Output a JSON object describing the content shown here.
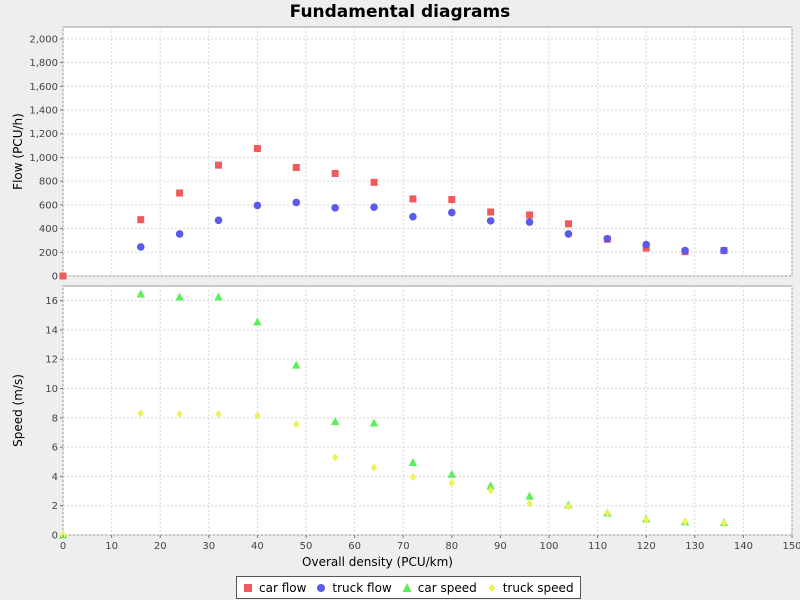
{
  "chart_data": {
    "title": "Fundamental diagrams",
    "xlabel": "Overall density (PCU/km)",
    "xlim": [
      0,
      150
    ],
    "xticks": [
      0,
      10,
      20,
      30,
      40,
      50,
      60,
      70,
      80,
      90,
      100,
      110,
      120,
      130,
      140,
      150
    ],
    "grid": true,
    "legend_position": "bottom",
    "plots": [
      {
        "type": "scatter",
        "ylabel": "Flow (PCU/h)",
        "ylim": [
          0,
          2100
        ],
        "yticks": [
          0,
          200,
          400,
          600,
          800,
          1000,
          1200,
          1400,
          1600,
          1800,
          2000
        ],
        "ytick_labels": [
          "0",
          "200",
          "400",
          "600",
          "800",
          "1,000",
          "1,200",
          "1,400",
          "1,600",
          "1,800",
          "2,000"
        ],
        "series": [
          {
            "name": "car flow",
            "marker": "square",
            "color": "#f05a5a",
            "points": [
              [
                0,
                0
              ],
              [
                16,
                475
              ],
              [
                24,
                700
              ],
              [
                32,
                935
              ],
              [
                40,
                1075
              ],
              [
                48,
                915
              ],
              [
                56,
                865
              ],
              [
                64,
                790
              ],
              [
                72,
                650
              ],
              [
                80,
                645
              ],
              [
                88,
                540
              ],
              [
                96,
                515
              ],
              [
                104,
                440
              ],
              [
                112,
                310
              ],
              [
                120,
                235
              ],
              [
                128,
                205
              ],
              [
                136,
                215
              ]
            ]
          },
          {
            "name": "truck flow",
            "marker": "circle",
            "color": "#5a5af0",
            "points": [
              [
                16,
                245
              ],
              [
                24,
                355
              ],
              [
                32,
                470
              ],
              [
                40,
                595
              ],
              [
                48,
                620
              ],
              [
                56,
                575
              ],
              [
                64,
                580
              ],
              [
                72,
                500
              ],
              [
                80,
                535
              ],
              [
                88,
                465
              ],
              [
                96,
                455
              ],
              [
                104,
                355
              ],
              [
                112,
                315
              ],
              [
                120,
                265
              ],
              [
                128,
                215
              ],
              [
                136,
                215
              ]
            ]
          }
        ]
      },
      {
        "type": "scatter",
        "ylabel": "Speed (m/s)",
        "ylim": [
          0,
          17
        ],
        "yticks": [
          0,
          2,
          4,
          6,
          8,
          10,
          12,
          14,
          16
        ],
        "ytick_labels": [
          "0",
          "2",
          "4",
          "6",
          "8",
          "10",
          "12",
          "14",
          "16"
        ],
        "series": [
          {
            "name": "car speed",
            "marker": "triangle",
            "color": "#5af05a",
            "points": [
              [
                0,
                0
              ],
              [
                16,
                16.45
              ],
              [
                24,
                16.25
              ],
              [
                32,
                16.25
              ],
              [
                40,
                14.55
              ],
              [
                48,
                11.6
              ],
              [
                56,
                7.75
              ],
              [
                64,
                7.65
              ],
              [
                72,
                4.95
              ],
              [
                80,
                4.15
              ],
              [
                88,
                3.35
              ],
              [
                96,
                2.65
              ],
              [
                104,
                2.05
              ],
              [
                112,
                1.5
              ],
              [
                120,
                1.1
              ],
              [
                128,
                0.9
              ],
              [
                136,
                0.85
              ]
            ]
          },
          {
            "name": "truck speed",
            "marker": "diamond",
            "color": "#f0f05a",
            "points": [
              [
                0,
                0
              ],
              [
                16,
                8.3
              ],
              [
                24,
                8.25
              ],
              [
                32,
                8.25
              ],
              [
                40,
                8.15
              ],
              [
                48,
                7.55
              ],
              [
                56,
                5.3
              ],
              [
                64,
                4.6
              ],
              [
                72,
                3.95
              ],
              [
                80,
                3.55
              ],
              [
                88,
                3.05
              ],
              [
                96,
                2.15
              ],
              [
                104,
                1.95
              ],
              [
                112,
                1.5
              ],
              [
                120,
                1.05
              ],
              [
                128,
                0.9
              ],
              [
                136,
                0.8
              ]
            ]
          }
        ]
      }
    ]
  }
}
